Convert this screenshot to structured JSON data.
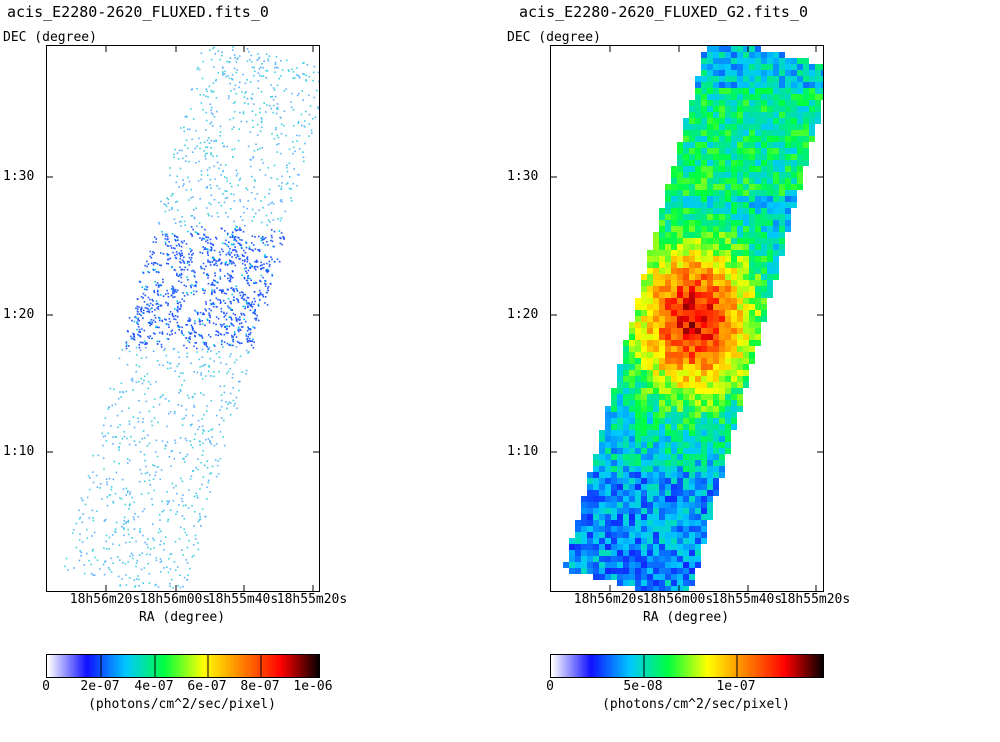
{
  "panels": [
    {
      "title": "acis_E2280-2620_FLUXED.fits_0",
      "y_axis_label": "DEC (degree)",
      "x_axis_label": "RA (degree)",
      "y_ticks": [
        "1:30",
        "1:20",
        "1:10"
      ],
      "x_ticks": [
        "18h56m20s",
        "18h56m00s",
        "18h55m40s",
        "18h55m20s"
      ],
      "colorbar_ticks": [
        "0",
        "2e-07",
        "4e-07",
        "6e-07",
        "8e-07",
        "1e-06"
      ],
      "colorbar_unit": "(photons/cm^2/sec/pixel)"
    },
    {
      "title": "acis_E2280-2620_FLUXED_G2.fits_0",
      "y_axis_label": "DEC (degree)",
      "x_axis_label": "RA (degree)",
      "y_ticks": [
        "1:30",
        "1:20",
        "1:10"
      ],
      "x_ticks": [
        "18h56m20s",
        "18h56m00s",
        "18h55m40s",
        "18h55m20s"
      ],
      "colorbar_ticks": [
        "0",
        "5e-08",
        "1e-07"
      ],
      "colorbar_unit": "(photons/cm^2/sec/pixel)"
    }
  ],
  "colors": {
    "colormap": [
      "#ffffff",
      "#1010ff",
      "#00c8ff",
      "#00ff40",
      "#ffff00",
      "#ff8000",
      "#ff0000",
      "#000000"
    ]
  }
}
